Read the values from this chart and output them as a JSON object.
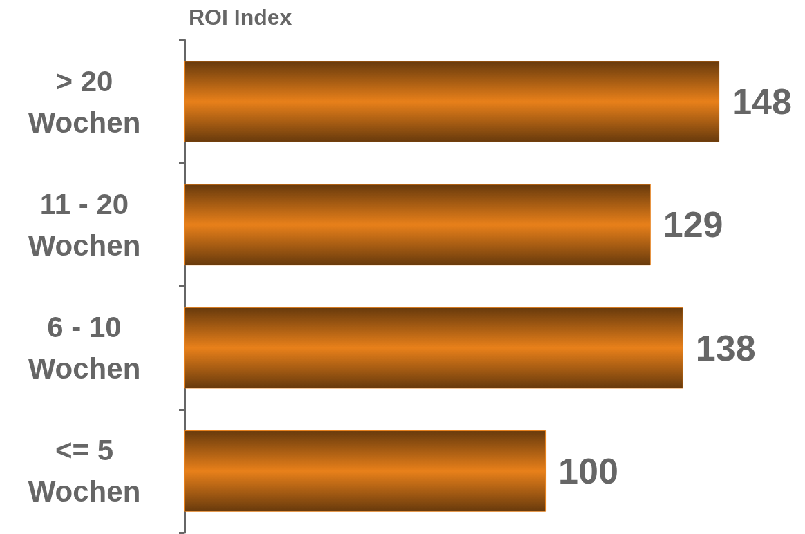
{
  "chart_data": {
    "type": "bar",
    "orientation": "horizontal",
    "title": "ROI Index",
    "categories": [
      "> 20 Wochen",
      "11 - 20 Wochen",
      "6 - 10 Wochen",
      "<= 5 Wochen"
    ],
    "values": [
      148,
      129,
      138,
      100
    ],
    "color": "#e8801a",
    "data_labels": true
  }
}
